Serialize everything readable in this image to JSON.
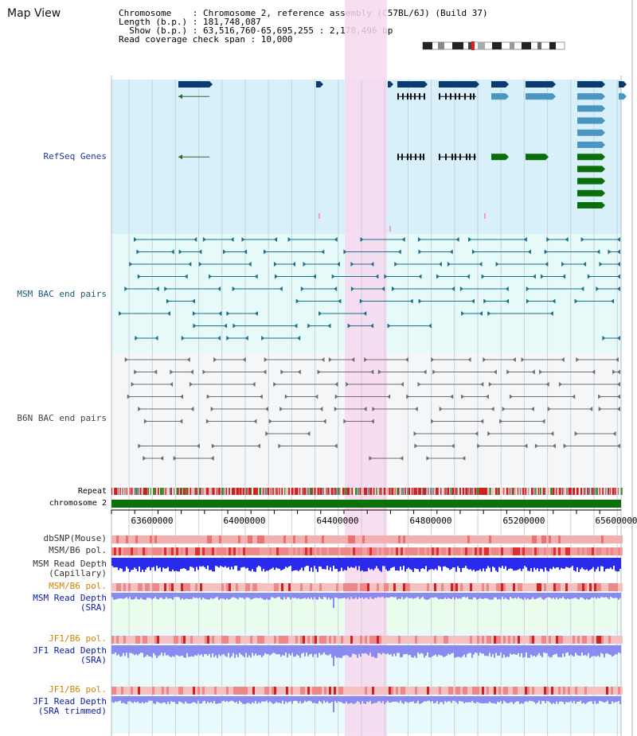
{
  "title": "Map View",
  "info": {
    "chromosome": "Chromosome    : Chromosome 2, reference assembly (C57BL/6J) (Build 37)",
    "length": "Length (b.p.) : 181,748,087",
    "show": "  Show (b.p.) : 63,516,760-65,695,255 : 2,178,496 bp",
    "coverage": "Read coverage check span : 10,000"
  },
  "tracks": {
    "refseq": "RefSeq Genes",
    "msm_bac": "MSM BAC end pairs",
    "b6n_bac": "B6N BAC end pairs",
    "repeat": "Repeat",
    "chrom": "chromosome 2",
    "dbsnp": "dbSNP(Mouse)",
    "msm_pol1": "MSM/B6 pol.",
    "msm_depth_cap_1": "MSM Read Depth",
    "msm_depth_cap_2": "(Capillary)",
    "msm_pol2": "MSM/B6 pol.",
    "msm_depth_sra_1": "MSM Read Depth",
    "msm_depth_sra_2": "(SRA)",
    "jf1_pol1": "JF1/B6 pol.",
    "jf1_depth_sra_1": "JF1 Read Depth",
    "jf1_depth_sra_2": "(SRA)",
    "jf1_pol2": "JF1/B6 pol.",
    "jf1_depth_tr_1": "JF1 Read Depth",
    "jf1_depth_tr_2": "(SRA trimmed)"
  },
  "axis_ticks": [
    "63600000",
    "64000000",
    "64400000",
    "64800000",
    "65200000",
    "65600000"
  ],
  "colors": {
    "refseq_bg": "#d8f0fa",
    "msm_bg": "#e6fafa",
    "b6n_bg": "#f4f6f8",
    "highlight": "#f8d8f0",
    "gene_dark": "#0a3a6e",
    "gene_light": "#4a96c0",
    "gene_green": "#0a6e0a",
    "msm_pair": "#1a6e8e",
    "b6n_pair": "#6e6e6e",
    "chrom_bar": "#0a700a",
    "depth_blue": "#2a2aee",
    "depth_lav": "#8a8af0"
  }
}
